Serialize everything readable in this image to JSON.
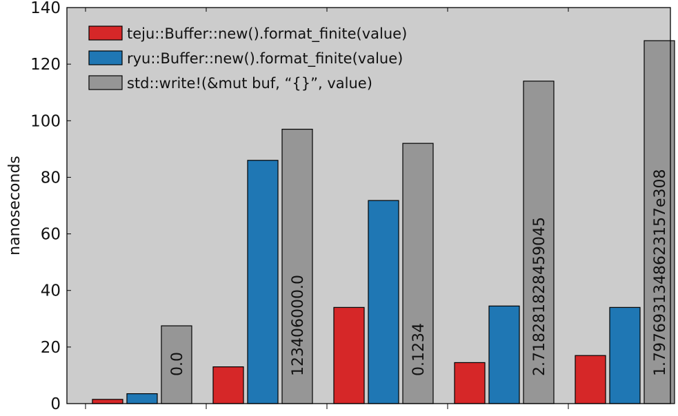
{
  "chart_data": {
    "type": "bar",
    "title": "",
    "xlabel": "",
    "ylabel": "nanoseconds",
    "ylim": [
      0,
      140
    ],
    "yticks": [
      0,
      20,
      40,
      60,
      80,
      100,
      120,
      140
    ],
    "grid": false,
    "legend_position": "top-left",
    "categories": [
      "0.0",
      "123406000.0",
      "0.1234",
      "2.718281828459045",
      "1.7976931348623157e308"
    ],
    "series": [
      {
        "name": "teju::Buffer::new().format_finite(value)",
        "color": "#d62728",
        "values": [
          1.5,
          13,
          34,
          14.5,
          17
        ]
      },
      {
        "name": "ryu::Buffer::new().format_finite(value)",
        "color": "#1f77b4",
        "values": [
          3.5,
          86,
          71.8,
          34.5,
          34
        ]
      },
      {
        "name": "std::write!(&mut buf, “{}”, value)",
        "color": "#969696",
        "values": [
          27.5,
          97,
          92,
          114,
          128.3
        ]
      }
    ],
    "plot_background": "#cccccc"
  }
}
